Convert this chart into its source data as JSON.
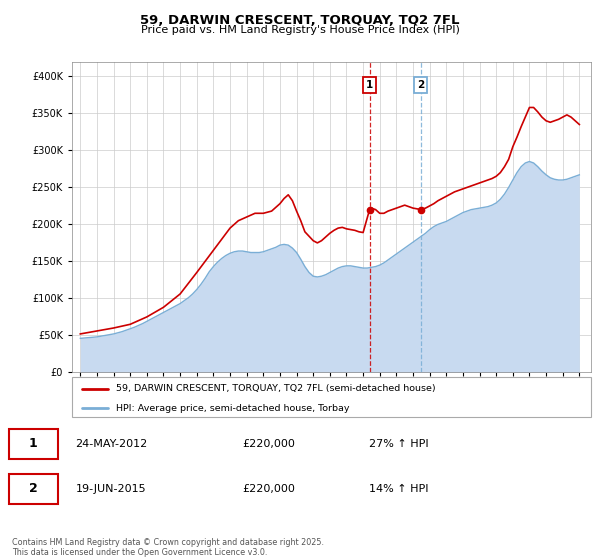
{
  "title": "59, DARWIN CRESCENT, TORQUAY, TQ2 7FL",
  "subtitle": "Price paid vs. HM Land Registry's House Price Index (HPI)",
  "legend_line1": "59, DARWIN CRESCENT, TORQUAY, TQ2 7FL (semi-detached house)",
  "legend_line2": "HPI: Average price, semi-detached house, Torbay",
  "footer": "Contains HM Land Registry data © Crown copyright and database right 2025.\nThis data is licensed under the Open Government Licence v3.0.",
  "sale1_date": "24-MAY-2012",
  "sale1_price": "£220,000",
  "sale1_hpi": "27% ↑ HPI",
  "sale2_date": "19-JUN-2015",
  "sale2_price": "£220,000",
  "sale2_hpi": "14% ↑ HPI",
  "sale1_x": 2012.39,
  "sale2_x": 2015.46,
  "red_color": "#cc0000",
  "blue_color": "#7aaed6",
  "blue_fill": "#c8daf0",
  "ylim": [
    0,
    420000
  ],
  "xlim_start": 1994.5,
  "xlim_end": 2025.7,
  "hpi_x": [
    1995.0,
    1995.25,
    1995.5,
    1995.75,
    1996.0,
    1996.25,
    1996.5,
    1996.75,
    1997.0,
    1997.25,
    1997.5,
    1997.75,
    1998.0,
    1998.25,
    1998.5,
    1998.75,
    1999.0,
    1999.25,
    1999.5,
    1999.75,
    2000.0,
    2000.25,
    2000.5,
    2000.75,
    2001.0,
    2001.25,
    2001.5,
    2001.75,
    2002.0,
    2002.25,
    2002.5,
    2002.75,
    2003.0,
    2003.25,
    2003.5,
    2003.75,
    2004.0,
    2004.25,
    2004.5,
    2004.75,
    2005.0,
    2005.25,
    2005.5,
    2005.75,
    2006.0,
    2006.25,
    2006.5,
    2006.75,
    2007.0,
    2007.25,
    2007.5,
    2007.75,
    2008.0,
    2008.25,
    2008.5,
    2008.75,
    2009.0,
    2009.25,
    2009.5,
    2009.75,
    2010.0,
    2010.25,
    2010.5,
    2010.75,
    2011.0,
    2011.25,
    2011.5,
    2011.75,
    2012.0,
    2012.25,
    2012.5,
    2012.75,
    2013.0,
    2013.25,
    2013.5,
    2013.75,
    2014.0,
    2014.25,
    2014.5,
    2014.75,
    2015.0,
    2015.25,
    2015.5,
    2015.75,
    2016.0,
    2016.25,
    2016.5,
    2016.75,
    2017.0,
    2017.25,
    2017.5,
    2017.75,
    2018.0,
    2018.25,
    2018.5,
    2018.75,
    2019.0,
    2019.25,
    2019.5,
    2019.75,
    2020.0,
    2020.25,
    2020.5,
    2020.75,
    2021.0,
    2021.25,
    2021.5,
    2021.75,
    2022.0,
    2022.25,
    2022.5,
    2022.75,
    2023.0,
    2023.25,
    2023.5,
    2023.75,
    2024.0,
    2024.25,
    2024.5,
    2024.75,
    2025.0
  ],
  "hpi_y": [
    46000,
    46500,
    47000,
    47500,
    48000,
    49000,
    50000,
    51000,
    52000,
    53500,
    55000,
    57000,
    59000,
    61000,
    63500,
    66000,
    69000,
    72000,
    75000,
    78000,
    81000,
    84000,
    87000,
    90000,
    93000,
    97000,
    101000,
    106000,
    112000,
    119000,
    127000,
    136000,
    143000,
    149000,
    154000,
    158000,
    161000,
    163000,
    164000,
    164000,
    163000,
    162000,
    162000,
    162000,
    163000,
    165000,
    167000,
    169000,
    172000,
    173000,
    172000,
    168000,
    162000,
    153000,
    143000,
    135000,
    130000,
    129000,
    130000,
    132000,
    135000,
    138000,
    141000,
    143000,
    144000,
    144000,
    143000,
    142000,
    141000,
    141000,
    142000,
    143000,
    145000,
    148000,
    152000,
    156000,
    160000,
    164000,
    168000,
    172000,
    176000,
    180000,
    184000,
    188000,
    193000,
    197000,
    200000,
    202000,
    204000,
    207000,
    210000,
    213000,
    216000,
    218000,
    220000,
    221000,
    222000,
    223000,
    224000,
    226000,
    229000,
    234000,
    241000,
    250000,
    260000,
    270000,
    278000,
    283000,
    285000,
    283000,
    278000,
    272000,
    267000,
    263000,
    261000,
    260000,
    260000,
    261000,
    263000,
    265000,
    267000
  ],
  "prop_x": [
    1995.0,
    1996.0,
    1997.0,
    1998.0,
    1999.0,
    2000.0,
    2001.0,
    2002.0,
    2003.0,
    2004.0,
    2004.5,
    2005.0,
    2005.5,
    2006.0,
    2006.5,
    2007.0,
    2007.25,
    2007.5,
    2007.75,
    2008.0,
    2008.25,
    2008.5,
    2009.0,
    2009.25,
    2009.5,
    2009.75,
    2010.0,
    2010.25,
    2010.5,
    2010.75,
    2011.0,
    2011.25,
    2011.5,
    2011.75,
    2012.0,
    2012.39,
    2012.5,
    2012.75,
    2013.0,
    2013.25,
    2013.5,
    2013.75,
    2014.0,
    2014.25,
    2014.5,
    2014.75,
    2015.0,
    2015.25,
    2015.46,
    2015.75,
    2016.0,
    2016.25,
    2016.5,
    2016.75,
    2017.0,
    2017.25,
    2017.5,
    2017.75,
    2018.0,
    2018.25,
    2018.5,
    2018.75,
    2019.0,
    2019.25,
    2019.5,
    2019.75,
    2020.0,
    2020.25,
    2020.5,
    2020.75,
    2021.0,
    2021.25,
    2021.5,
    2021.75,
    2022.0,
    2022.25,
    2022.5,
    2022.75,
    2023.0,
    2023.25,
    2023.5,
    2023.75,
    2024.0,
    2024.25,
    2024.5,
    2024.75,
    2025.0
  ],
  "prop_y": [
    52000,
    56000,
    60000,
    65000,
    75000,
    88000,
    106000,
    135000,
    165000,
    195000,
    205000,
    210000,
    215000,
    215000,
    218000,
    228000,
    235000,
    240000,
    232000,
    218000,
    205000,
    190000,
    178000,
    175000,
    178000,
    183000,
    188000,
    192000,
    195000,
    196000,
    194000,
    193000,
    192000,
    190000,
    189000,
    220000,
    222000,
    220000,
    215000,
    215000,
    218000,
    220000,
    222000,
    224000,
    226000,
    224000,
    222000,
    221000,
    220000,
    222000,
    225000,
    228000,
    232000,
    235000,
    238000,
    241000,
    244000,
    246000,
    248000,
    250000,
    252000,
    254000,
    256000,
    258000,
    260000,
    262000,
    265000,
    270000,
    278000,
    288000,
    305000,
    318000,
    332000,
    345000,
    358000,
    358000,
    352000,
    345000,
    340000,
    338000,
    340000,
    342000,
    345000,
    348000,
    345000,
    340000,
    335000
  ]
}
